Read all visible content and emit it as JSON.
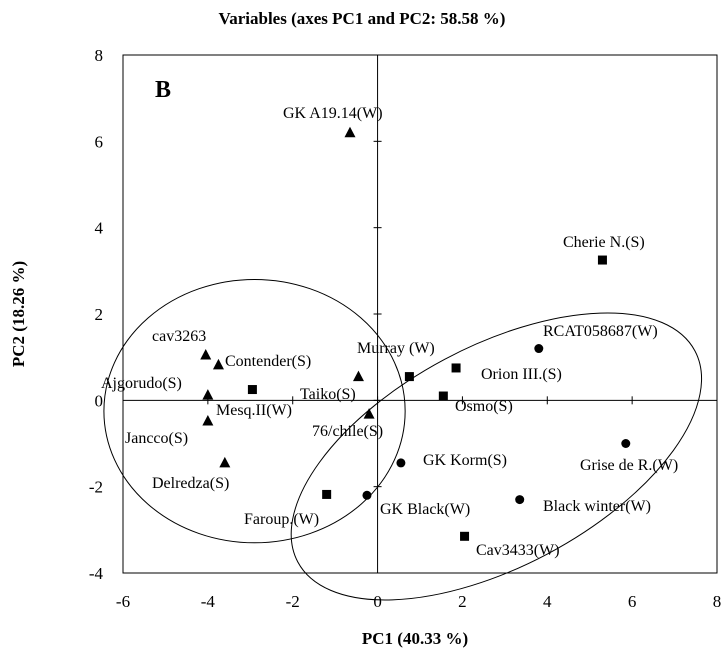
{
  "chart_data": {
    "type": "scatter",
    "title": "Variables (axes PC1 and PC2: 58.58 %)",
    "panel_letter": "B",
    "xlabel": "PC1 (40.33 %)",
    "ylabel": "PC2 (18.26 %)",
    "xlim": [
      -6,
      8
    ],
    "ylim": [
      -4,
      8
    ],
    "xticks": [
      "-6",
      "-4",
      "-2",
      "0",
      "2",
      "4",
      "6",
      "8"
    ],
    "yticks": [
      "-4",
      "-2",
      "0",
      "2",
      "4",
      "6",
      "8"
    ],
    "grid": false,
    "points": [
      {
        "label": "GK A19.14(W)",
        "x": -0.65,
        "y": 6.2,
        "marker": "triangle"
      },
      {
        "label": "cav3263",
        "x": -4.05,
        "y": 1.05,
        "marker": "triangle"
      },
      {
        "label": "Contender(S)",
        "x": -3.75,
        "y": 0.82,
        "marker": "triangle"
      },
      {
        "label": "Ajgorudo(S)",
        "x": -4.0,
        "y": 0.12,
        "marker": "triangle"
      },
      {
        "label": "Mesq.II(W)",
        "x": -4.0,
        "y": -0.48,
        "marker": "triangle"
      },
      {
        "label": "Jancco(S)",
        "x": -3.6,
        "y": -1.45,
        "marker": "triangle"
      },
      {
        "label": "Delredza(S)",
        "x": -0.45,
        "y": 0.55,
        "marker": "triangle"
      },
      {
        "label": "Taiko(S)",
        "x": -0.2,
        "y": -0.32,
        "marker": "triangle"
      },
      {
        "label": "",
        "x": -2.95,
        "y": 0.25,
        "marker": "square"
      },
      {
        "label": "Cherie N.(S)",
        "x": 5.3,
        "y": 3.25,
        "marker": "square"
      },
      {
        "label": "Murray (W)",
        "x": 0.75,
        "y": 0.55,
        "marker": "square"
      },
      {
        "label": "Orion III.(S)",
        "x": 1.85,
        "y": 0.75,
        "marker": "square"
      },
      {
        "label": "Osmo(S)",
        "x": 1.55,
        "y": 0.1,
        "marker": "square"
      },
      {
        "label": "Faroup.(W)",
        "x": -1.2,
        "y": -2.18,
        "marker": "square"
      },
      {
        "label": "Cav3433(W)",
        "x": 2.05,
        "y": -3.15,
        "marker": "square"
      },
      {
        "label": "RCAT058687(W)",
        "x": 3.8,
        "y": 1.2,
        "marker": "circle"
      },
      {
        "label": "76/chile(S)",
        "x": 0.55,
        "y": -1.45,
        "marker": "circle"
      },
      {
        "label": "Grise de R.(W)",
        "x": 5.85,
        "y": -1.0,
        "marker": "circle"
      },
      {
        "label": "GK Korm(S)",
        "x": -0.25,
        "y": -2.2,
        "marker": "circle"
      },
      {
        "label": "GK Black(W)",
        "x": 3.35,
        "y": -2.3,
        "marker": "circle"
      },
      {
        "label": "Black winter(W)",
        "x": null,
        "y": null,
        "marker": "none"
      }
    ],
    "ellipses": [
      {
        "cx": -2.9,
        "cy": -0.25,
        "rx": 3.55,
        "ry": 3.05,
        "rotation_deg": 0
      },
      {
        "cx": 2.8,
        "cy": -1.3,
        "rx": 5.3,
        "ry": 2.55,
        "rotation_deg": 28
      }
    ]
  }
}
